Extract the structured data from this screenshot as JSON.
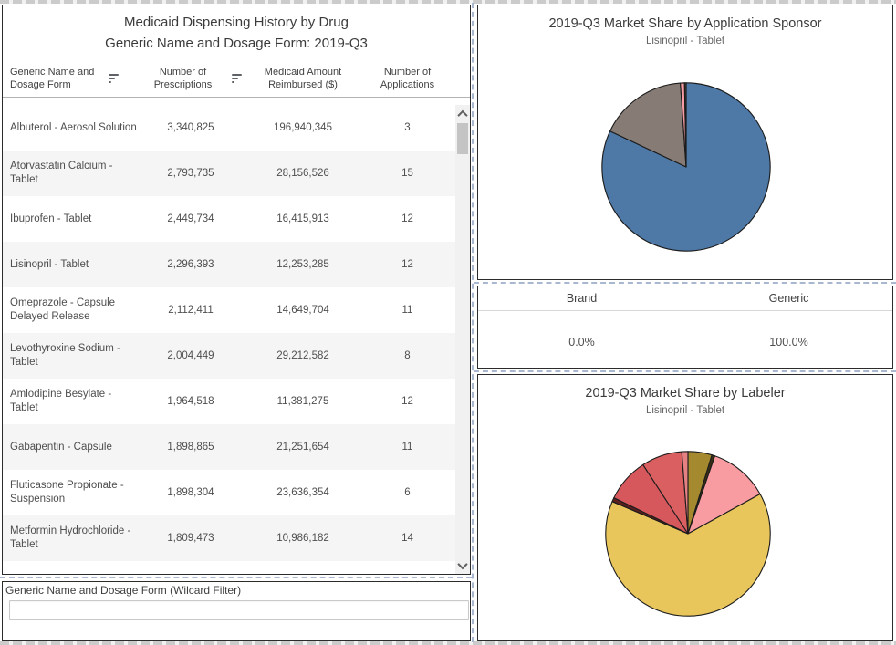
{
  "table_panel": {
    "title_line1": "Medicaid Dispensing History by Drug",
    "title_line2": "Generic Name and Dosage Form: 2019-Q3",
    "columns": [
      "Generic Name and Dosage Form",
      "Number of Prescriptions",
      "Medicaid Amount Reimbursed ($)",
      "Number of Applications"
    ],
    "rows": [
      {
        "name": "Albuterol - Aerosol Solution",
        "prescriptions": "3,340,825",
        "reimbursed": "196,940,345",
        "applications": "3"
      },
      {
        "name": "Atorvastatin Calcium - Tablet",
        "prescriptions": "2,793,735",
        "reimbursed": "28,156,526",
        "applications": "15"
      },
      {
        "name": "Ibuprofen - Tablet",
        "prescriptions": "2,449,734",
        "reimbursed": "16,415,913",
        "applications": "12"
      },
      {
        "name": "Lisinopril - Tablet",
        "prescriptions": "2,296,393",
        "reimbursed": "12,253,285",
        "applications": "12"
      },
      {
        "name": "Omeprazole - Capsule Delayed Release",
        "prescriptions": "2,112,411",
        "reimbursed": "14,649,704",
        "applications": "11"
      },
      {
        "name": "Levothyroxine Sodium - Tablet",
        "prescriptions": "2,004,449",
        "reimbursed": "29,212,582",
        "applications": "8"
      },
      {
        "name": "Amlodipine Besylate - Tablet",
        "prescriptions": "1,964,518",
        "reimbursed": "11,381,275",
        "applications": "12"
      },
      {
        "name": "Gabapentin - Capsule",
        "prescriptions": "1,898,865",
        "reimbursed": "21,251,654",
        "applications": "11"
      },
      {
        "name": "Fluticasone Propionate - Suspension",
        "prescriptions": "1,898,304",
        "reimbursed": "23,636,354",
        "applications": "6"
      },
      {
        "name": "Metformin Hydrochloride - Tablet",
        "prescriptions": "1,809,473",
        "reimbursed": "10,986,182",
        "applications": "14"
      }
    ]
  },
  "filter_panel": {
    "label": "Generic Name and Dosage Form (Wilcard Filter)",
    "value": "",
    "placeholder": ""
  },
  "brand_generic": {
    "headers": [
      "Brand",
      "Generic"
    ],
    "values": [
      "0.0%",
      "100.0%"
    ]
  },
  "chart_data": [
    {
      "type": "pie",
      "title": "2019-Q3 Market Share by Application Sponsor",
      "subtitle": "Lisinopril - Tablet",
      "unit": "percent (estimated from arc angles)",
      "start_angle": "top",
      "direction": "clockwise",
      "legend": "none",
      "slices": [
        {
          "value": 82.0,
          "color": "#4E79A7"
        },
        {
          "value": 16.9,
          "color": "#877C75"
        },
        {
          "value": 0.8,
          "color": "#F79CA4"
        },
        {
          "value": 0.3,
          "color": "#4A3F35"
        }
      ]
    },
    {
      "type": "pie",
      "title": "2019-Q3 Market Share by Labeler",
      "subtitle": "Lisinopril - Tablet",
      "unit": "percent (estimated from arc angles)",
      "start_angle": "top",
      "direction": "clockwise",
      "legend": "none",
      "slices": [
        {
          "value": 4.7,
          "color": "#A5892F"
        },
        {
          "value": 0.6,
          "color": "#3A2E14"
        },
        {
          "value": 11.7,
          "color": "#F89CA2"
        },
        {
          "value": 64.4,
          "color": "#E9C65C"
        },
        {
          "value": 0.8,
          "color": "#5C1F1F"
        },
        {
          "value": 8.6,
          "color": "#D6585C"
        },
        {
          "value": 8.0,
          "color": "#DA5F61"
        },
        {
          "value": 1.2,
          "color": "#E58083"
        }
      ]
    }
  ]
}
